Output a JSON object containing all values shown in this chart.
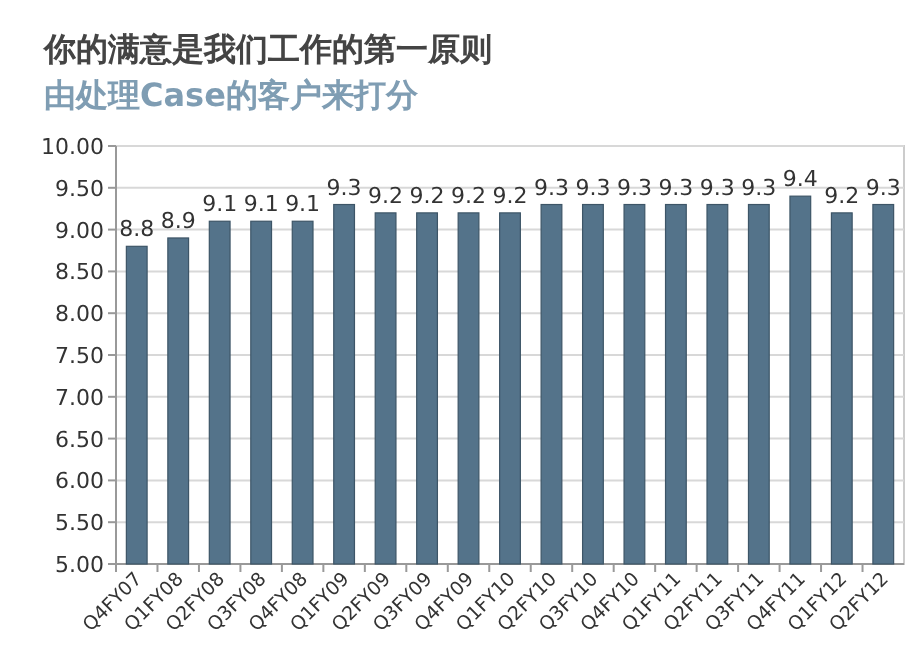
{
  "chart_data": {
    "type": "bar",
    "title": "你的满意是我们工作的第一原则",
    "subtitle": "由处理Case的客户来打分",
    "categories": [
      "Q4FY07",
      "Q1FY08",
      "Q2FY08",
      "Q3FY08",
      "Q4FY08",
      "Q1FY09",
      "Q2FY09",
      "Q3FY09",
      "Q4FY09",
      "Q1FY10",
      "Q2FY10",
      "Q3FY10",
      "Q4FY10",
      "Q1FY11",
      "Q2FY11",
      "Q3FY11",
      "Q4FY11",
      "Q1FY12",
      "Q2FY12"
    ],
    "values": [
      8.8,
      8.9,
      9.1,
      9.1,
      9.1,
      9.3,
      9.2,
      9.2,
      9.2,
      9.2,
      9.3,
      9.3,
      9.3,
      9.3,
      9.3,
      9.3,
      9.4,
      9.2,
      9.3
    ],
    "color": "#54738a",
    "ylim": [
      5,
      10
    ],
    "yticks": [
      {
        "value": 5,
        "label": "5.00"
      },
      {
        "value": 5.5,
        "label": "5.50"
      },
      {
        "value": 6,
        "label": "6.00"
      },
      {
        "value": 6.5,
        "label": "6.50"
      },
      {
        "value": 7,
        "label": "7.00"
      },
      {
        "value": 7.5,
        "label": "7.50"
      },
      {
        "value": 8,
        "label": "8.00"
      },
      {
        "value": 8.5,
        "label": "8.50"
      },
      {
        "value": 9,
        "label": "9.00"
      },
      {
        "value": 9.5,
        "label": "9.50"
      },
      {
        "value": 10,
        "label": "10.00"
      }
    ],
    "grid": "y",
    "data_labels": true
  }
}
